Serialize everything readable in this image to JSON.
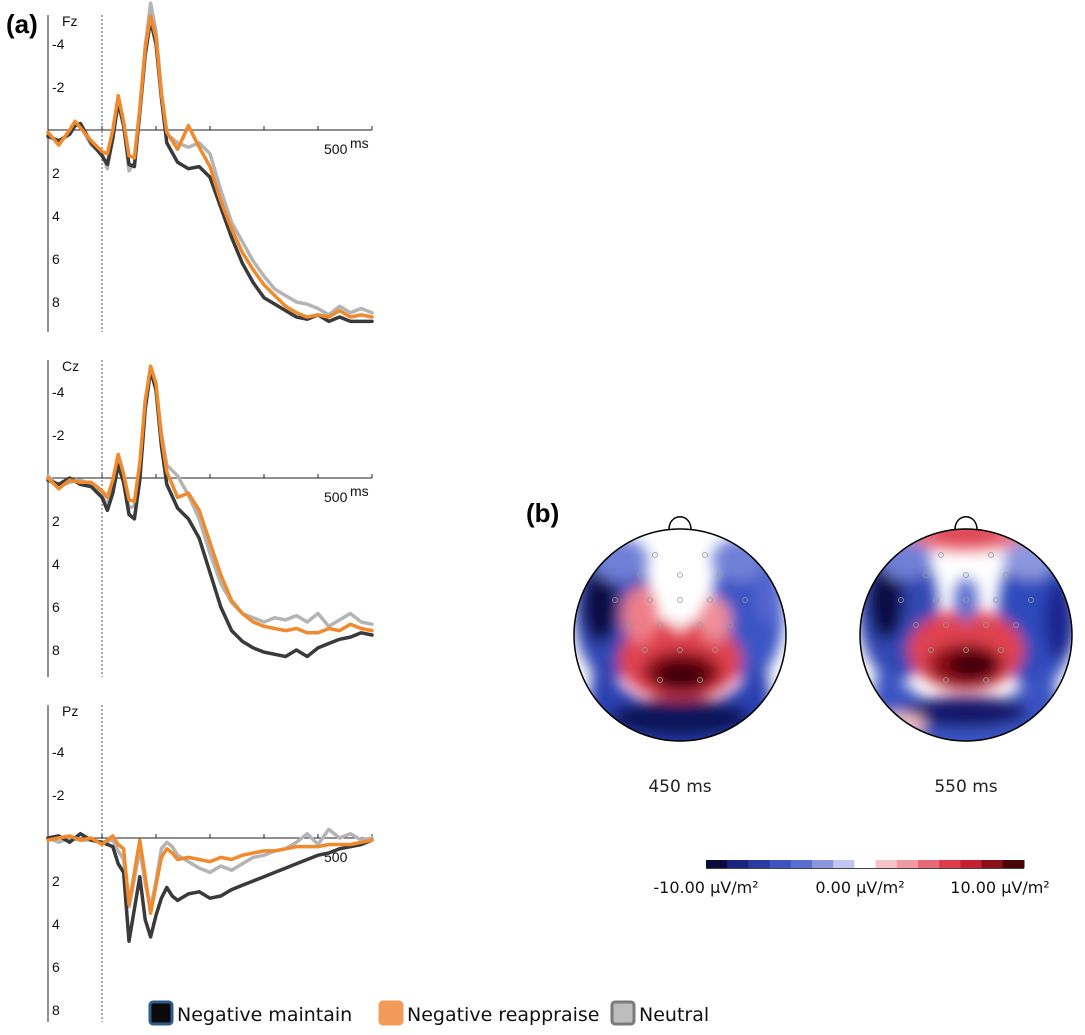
{
  "panels": {
    "a_label": "a",
    "b_label": "b"
  },
  "chart_data": [
    {
      "type": "line",
      "channel": "Fz",
      "x_unit": "ms",
      "x_tick_label": "500",
      "xlim": [
        -100,
        500
      ],
      "ylim": [
        -6,
        10
      ],
      "y_inverted": true,
      "y_ticks": [
        -4,
        -2,
        2,
        4,
        6,
        8
      ],
      "series": [
        {
          "name": "Negative maintain",
          "color": "#3a3a3a",
          "x": [
            -100,
            -80,
            -60,
            -50,
            -40,
            -20,
            0,
            10,
            20,
            30,
            40,
            50,
            60,
            70,
            80,
            90,
            100,
            110,
            120,
            140,
            160,
            180,
            200,
            220,
            240,
            260,
            280,
            300,
            320,
            340,
            360,
            380,
            400,
            420,
            440,
            460,
            480,
            500
          ],
          "y": [
            0.3,
            0.5,
            0.2,
            -0.2,
            -0.3,
            0.6,
            1.2,
            1.6,
            0.4,
            -1.3,
            -0.2,
            1.6,
            1.7,
            -0.8,
            -3.5,
            -5.1,
            -4.0,
            -1.5,
            0.6,
            1.5,
            1.8,
            1.7,
            2.2,
            3.6,
            5.0,
            6.2,
            7.1,
            7.8,
            8.1,
            8.4,
            8.7,
            8.8,
            8.6,
            8.9,
            8.7,
            8.9,
            8.9,
            8.9
          ]
        },
        {
          "name": "Negative reappraise",
          "color": "#f08a2e",
          "x": [
            -100,
            -80,
            -60,
            -50,
            -40,
            -20,
            0,
            10,
            20,
            30,
            40,
            50,
            60,
            70,
            80,
            90,
            100,
            110,
            120,
            140,
            160,
            180,
            200,
            220,
            240,
            260,
            280,
            300,
            320,
            340,
            360,
            380,
            400,
            420,
            440,
            460,
            480,
            500
          ],
          "y": [
            0.1,
            0.7,
            0.0,
            -0.4,
            -0.1,
            0.5,
            1.0,
            1.1,
            0.0,
            -1.6,
            -0.4,
            1.2,
            1.3,
            -1.0,
            -3.8,
            -5.3,
            -4.3,
            -1.7,
            0.1,
            0.9,
            -0.2,
            0.8,
            1.7,
            3.3,
            4.6,
            5.7,
            6.5,
            7.2,
            7.7,
            8.2,
            8.5,
            8.7,
            8.6,
            8.7,
            8.4,
            8.7,
            8.6,
            8.7
          ]
        },
        {
          "name": "Neutral",
          "color": "#b4b4b4",
          "x": [
            -100,
            -80,
            -60,
            -50,
            -40,
            -20,
            0,
            10,
            20,
            30,
            40,
            50,
            60,
            70,
            80,
            90,
            100,
            110,
            120,
            140,
            160,
            180,
            200,
            220,
            240,
            260,
            280,
            300,
            320,
            340,
            360,
            380,
            400,
            420,
            440,
            460,
            480,
            500
          ],
          "y": [
            0.2,
            0.6,
            0.1,
            -0.3,
            -0.2,
            0.7,
            1.1,
            1.8,
            0.3,
            -1.4,
            -0.3,
            1.9,
            1.5,
            -0.9,
            -3.9,
            -5.9,
            -4.6,
            -1.8,
            0.2,
            0.6,
            0.8,
            0.6,
            1.1,
            2.8,
            4.3,
            5.2,
            6.1,
            6.8,
            7.4,
            7.7,
            8.0,
            8.1,
            8.3,
            8.6,
            8.2,
            8.5,
            8.3,
            8.5
          ]
        }
      ]
    },
    {
      "type": "line",
      "channel": "Cz",
      "x_unit": "ms",
      "x_tick_label": "500",
      "xlim": [
        -100,
        500
      ],
      "ylim": [
        -6,
        10
      ],
      "y_inverted": true,
      "y_ticks": [
        -4,
        -2,
        2,
        4,
        6,
        8
      ],
      "series": [
        {
          "name": "Negative maintain",
          "color": "#3a3a3a",
          "x": [
            -100,
            -80,
            -60,
            -40,
            -20,
            0,
            10,
            20,
            30,
            40,
            50,
            60,
            70,
            80,
            90,
            100,
            110,
            120,
            140,
            160,
            180,
            200,
            220,
            240,
            260,
            280,
            300,
            320,
            340,
            360,
            380,
            400,
            420,
            440,
            460,
            480,
            500
          ],
          "y": [
            0.1,
            0.3,
            0.0,
            0.3,
            0.4,
            0.9,
            1.5,
            0.7,
            -0.6,
            0.2,
            1.7,
            1.9,
            0.1,
            -3.2,
            -5.0,
            -4.1,
            -1.5,
            0.3,
            1.4,
            1.9,
            2.8,
            4.4,
            6.0,
            7.1,
            7.6,
            7.9,
            8.1,
            8.2,
            8.3,
            8.0,
            8.3,
            7.9,
            7.7,
            7.5,
            7.4,
            7.2,
            7.3
          ]
        },
        {
          "name": "Negative reappraise",
          "color": "#f08a2e",
          "x": [
            -100,
            -80,
            -60,
            -40,
            -20,
            0,
            10,
            20,
            30,
            40,
            50,
            60,
            70,
            80,
            90,
            100,
            110,
            120,
            140,
            160,
            180,
            200,
            220,
            240,
            260,
            280,
            300,
            320,
            340,
            360,
            380,
            400,
            420,
            440,
            460,
            480,
            500
          ],
          "y": [
            0.0,
            0.5,
            0.1,
            0.2,
            0.2,
            0.6,
            0.9,
            0.1,
            -1.1,
            -0.2,
            1.0,
            1.1,
            -0.7,
            -3.6,
            -5.2,
            -4.4,
            -1.9,
            -0.3,
            0.9,
            0.7,
            1.5,
            3.0,
            4.5,
            5.7,
            6.3,
            6.7,
            6.9,
            7.0,
            7.1,
            7.0,
            7.2,
            7.2,
            7.0,
            7.1,
            6.8,
            7.0,
            7.1
          ]
        },
        {
          "name": "Neutral",
          "color": "#b4b4b4",
          "x": [
            -100,
            -80,
            -60,
            -40,
            -20,
            0,
            10,
            20,
            30,
            40,
            50,
            60,
            70,
            80,
            90,
            100,
            110,
            120,
            140,
            160,
            180,
            200,
            220,
            240,
            260,
            280,
            300,
            320,
            340,
            360,
            380,
            400,
            420,
            440,
            460,
            480,
            500
          ],
          "y": [
            -0.1,
            0.4,
            0.2,
            0.1,
            0.3,
            0.8,
            1.3,
            0.4,
            -0.9,
            0.0,
            1.4,
            1.3,
            -0.5,
            -3.4,
            -5.1,
            -4.2,
            -2.1,
            -0.6,
            -0.1,
            0.8,
            1.9,
            3.5,
            4.9,
            5.8,
            6.3,
            6.5,
            6.7,
            6.5,
            6.6,
            6.4,
            6.7,
            6.3,
            6.9,
            6.6,
            6.3,
            6.7,
            6.8
          ]
        }
      ]
    },
    {
      "type": "line",
      "channel": "Pz",
      "x_tick_label": "500",
      "xlim": [
        -100,
        500
      ],
      "ylim": [
        -6,
        10
      ],
      "y_inverted": true,
      "y_ticks": [
        -4,
        -2,
        2,
        4,
        6,
        8
      ],
      "series": [
        {
          "name": "Negative maintain",
          "color": "#3a3a3a",
          "x": [
            -100,
            -80,
            -60,
            -40,
            -20,
            0,
            20,
            30,
            40,
            50,
            60,
            70,
            80,
            90,
            100,
            110,
            120,
            130,
            140,
            160,
            180,
            200,
            220,
            240,
            260,
            280,
            300,
            320,
            340,
            360,
            380,
            400,
            420,
            440,
            460,
            480,
            500
          ],
          "y": [
            0.0,
            -0.1,
            0.2,
            -0.2,
            0.1,
            0.2,
            0.4,
            1.2,
            1.6,
            4.8,
            3.3,
            1.8,
            3.8,
            4.6,
            3.6,
            2.8,
            2.3,
            2.7,
            2.9,
            2.6,
            2.5,
            2.8,
            2.7,
            2.4,
            2.2,
            2.0,
            1.8,
            1.6,
            1.4,
            1.2,
            1.0,
            0.8,
            0.7,
            0.5,
            0.4,
            0.3,
            0.1
          ]
        },
        {
          "name": "Negative reappraise",
          "color": "#f08a2e",
          "x": [
            -100,
            -80,
            -60,
            -40,
            -20,
            0,
            20,
            30,
            40,
            50,
            60,
            70,
            80,
            90,
            100,
            110,
            120,
            130,
            140,
            160,
            180,
            200,
            220,
            240,
            260,
            280,
            300,
            320,
            340,
            360,
            380,
            400,
            420,
            440,
            460,
            480,
            500
          ],
          "y": [
            0.1,
            0.0,
            -0.1,
            0.1,
            0.0,
            0.3,
            -0.1,
            0.3,
            0.5,
            3.1,
            1.6,
            0.1,
            1.8,
            3.5,
            2.2,
            0.9,
            0.5,
            0.7,
            1.0,
            0.9,
            1.0,
            1.1,
            0.9,
            1.0,
            0.8,
            0.7,
            0.6,
            0.6,
            0.5,
            0.4,
            0.4,
            0.4,
            0.3,
            0.3,
            0.3,
            0.2,
            0.1
          ]
        },
        {
          "name": "Neutral",
          "color": "#b4b4b4",
          "x": [
            -100,
            -80,
            -60,
            -40,
            -20,
            0,
            20,
            30,
            40,
            50,
            60,
            70,
            80,
            90,
            100,
            110,
            120,
            130,
            140,
            160,
            180,
            200,
            220,
            240,
            260,
            280,
            300,
            320,
            340,
            360,
            380,
            400,
            420,
            440,
            460,
            480,
            500
          ],
          "y": [
            0.0,
            0.2,
            0.0,
            0.1,
            0.1,
            0.2,
            0.1,
            0.6,
            1.0,
            3.2,
            1.9,
            0.5,
            2.1,
            3.3,
            2.0,
            0.5,
            0.2,
            0.4,
            0.8,
            1.1,
            1.4,
            1.6,
            1.3,
            1.5,
            1.2,
            0.9,
            0.8,
            0.6,
            0.5,
            0.2,
            -0.2,
            0.3,
            -0.4,
            0.0,
            -0.2,
            0.1,
            0.0
          ]
        }
      ]
    },
    {
      "type": "heatmap",
      "subtype": "scalp-topography",
      "maps": [
        {
          "time_label": "450 ms"
        },
        {
          "time_label": "550 ms"
        }
      ],
      "colorbar": {
        "min_label": "-10.00 µV/m²",
        "mid_label": "0.00 µV/m²",
        "max_label": "10.00 µV/m²",
        "range": [
          -10,
          10
        ],
        "colors": [
          "#0a0a3c",
          "#1a237e",
          "#2b3aa0",
          "#3f53c0",
          "#5a6ecf",
          "#8a96dd",
          "#c0c6ef",
          "#ffffff",
          "#f6c3c8",
          "#f199a3",
          "#e86a78",
          "#de3c4c",
          "#c4202f",
          "#8a0f18",
          "#4a0508"
        ]
      }
    }
  ],
  "legend": {
    "items": [
      {
        "label": "Negative maintain",
        "fill": "#0a0a0a",
        "border": "#2f5a8a"
      },
      {
        "label": "Negative reappraise",
        "fill": "#f39a5b",
        "border": "#f39a5b"
      },
      {
        "label": "Neutral",
        "fill": "#bdbdbd",
        "border": "#7a7a7a"
      }
    ]
  }
}
